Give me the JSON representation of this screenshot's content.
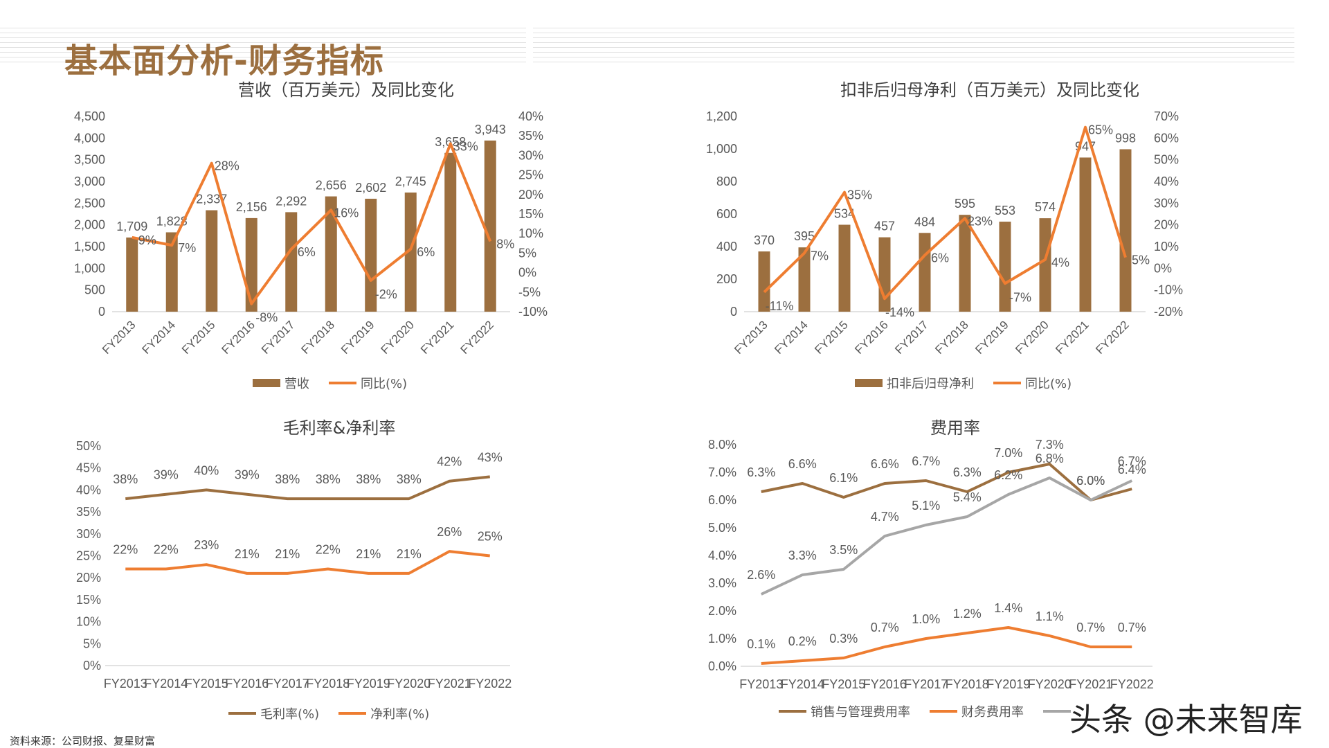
{
  "page_title": "基本面分析-财务指标",
  "source_note": "资料来源：公司财报、复星财富",
  "watermark": "头条 @未来智库",
  "colors": {
    "brown": "#9c6f3f",
    "orange": "#ee7d31",
    "gray": "#a6a6a6",
    "axis": "#d9d9d9",
    "text": "#595959"
  },
  "chart_data": [
    {
      "type": "bar",
      "title": "营收（百万美元）及同比变化",
      "categories": [
        "FY2013",
        "FY2014",
        "FY2015",
        "FY2016",
        "FY2017",
        "FY2018",
        "FY2019",
        "FY2020",
        "FY2021",
        "FY2022"
      ],
      "series": [
        {
          "name": "营收",
          "type": "bar",
          "axis": "left",
          "values": [
            1709,
            1828,
            2337,
            2156,
            2292,
            2656,
            2602,
            2745,
            3658,
            3943
          ],
          "labels": [
            "1,709",
            "1,828",
            "2,337",
            "2,156",
            "2,292",
            "2,656",
            "2,602",
            "2,745",
            "3,658",
            "3,943"
          ]
        },
        {
          "name": "同比(%)",
          "type": "line",
          "axis": "right",
          "values": [
            9,
            7,
            28,
            -8,
            6,
            16,
            -2,
            6,
            33,
            8
          ],
          "labels": [
            "9%",
            "7%",
            "28%",
            "-8%",
            "6%",
            "16%",
            "-2%",
            "6%",
            "33%",
            "8%"
          ]
        }
      ],
      "ylim_left": [
        0,
        4500
      ],
      "yticks_left": [
        "0",
        "500",
        "1,000",
        "1,500",
        "2,000",
        "2,500",
        "3,000",
        "3,500",
        "4,000",
        "4,500"
      ],
      "ylim_right": [
        -10,
        40
      ],
      "yticks_right": [
        "-10%",
        "-5%",
        "0%",
        "5%",
        "10%",
        "15%",
        "20%",
        "25%",
        "30%",
        "35%",
        "40%"
      ],
      "legend": [
        "营收",
        "同比(%)"
      ]
    },
    {
      "type": "bar",
      "title": "扣非后归母净利（百万美元）及同比变化",
      "categories": [
        "FY2013",
        "FY2014",
        "FY2015",
        "FY2016",
        "FY2017",
        "FY2018",
        "FY2019",
        "FY2020",
        "FY2021",
        "FY2022"
      ],
      "series": [
        {
          "name": "扣非后归母净利",
          "type": "bar",
          "axis": "left",
          "values": [
            370,
            395,
            534,
            457,
            484,
            595,
            553,
            574,
            947,
            998
          ],
          "labels": [
            "370",
            "395",
            "534",
            "457",
            "484",
            "595",
            "553",
            "574",
            "947",
            "998"
          ]
        },
        {
          "name": "同比(%)",
          "type": "line",
          "axis": "right",
          "values": [
            -11,
            7,
            35,
            -14,
            6,
            23,
            -7,
            4,
            65,
            5
          ],
          "labels": [
            "-11%",
            "7%",
            "35%",
            "-14%",
            "6%",
            "23%",
            "-7%",
            "4%",
            "65%",
            "5%"
          ]
        }
      ],
      "ylim_left": [
        0,
        1200
      ],
      "yticks_left": [
        "0",
        "200",
        "400",
        "600",
        "800",
        "1,000",
        "1,200"
      ],
      "ylim_right": [
        -20,
        70
      ],
      "yticks_right": [
        "-20%",
        "-10%",
        "0%",
        "10%",
        "20%",
        "30%",
        "40%",
        "50%",
        "60%",
        "70%"
      ],
      "legend": [
        "扣非后归母净利",
        "同比(%)"
      ]
    },
    {
      "type": "line",
      "title": "毛利率&净利率",
      "categories": [
        "FY2013",
        "FY2014",
        "FY2015",
        "FY2016",
        "FY2017",
        "FY2018",
        "FY2019",
        "FY2020",
        "FY2021",
        "FY2022"
      ],
      "series": [
        {
          "name": "毛利率(%)",
          "values": [
            38,
            39,
            40,
            39,
            38,
            38,
            38,
            38,
            42,
            43
          ],
          "labels": [
            "38%",
            "39%",
            "40%",
            "39%",
            "38%",
            "38%",
            "38%",
            "38%",
            "42%",
            "43%"
          ]
        },
        {
          "name": "净利率(%)",
          "values": [
            22,
            22,
            23,
            21,
            21,
            22,
            21,
            21,
            26,
            25
          ],
          "labels": [
            "22%",
            "22%",
            "23%",
            "21%",
            "21%",
            "22%",
            "21%",
            "21%",
            "26%",
            "25%"
          ]
        }
      ],
      "ylim": [
        0,
        50
      ],
      "yticks": [
        "0%",
        "5%",
        "10%",
        "15%",
        "20%",
        "25%",
        "30%",
        "35%",
        "40%",
        "45%",
        "50%"
      ],
      "legend": [
        "毛利率(%)",
        "净利率(%)"
      ]
    },
    {
      "type": "line",
      "title": "费用率",
      "categories": [
        "FY2013",
        "FY2014",
        "FY2015",
        "FY2016",
        "FY2017",
        "FY2018",
        "FY2019",
        "FY2020",
        "FY2021",
        "FY2022"
      ],
      "series": [
        {
          "name": "销售与管理费用率",
          "values": [
            6.3,
            6.6,
            6.1,
            6.6,
            6.7,
            6.3,
            7.0,
            7.3,
            6.0,
            6.4
          ],
          "labels": [
            "6.3%",
            "6.6%",
            "6.1%",
            "6.6%",
            "6.7%",
            "6.3%",
            "7.0%",
            "7.3%",
            "6.0%",
            "6.4%"
          ]
        },
        {
          "name": "财务费用率",
          "values": [
            0.1,
            0.2,
            0.3,
            0.7,
            1.0,
            1.2,
            1.4,
            1.1,
            0.7,
            0.7
          ],
          "labels": [
            "0.1%",
            "0.2%",
            "0.3%",
            "0.7%",
            "1.0%",
            "1.2%",
            "1.4%",
            "1.1%",
            "0.7%",
            "0.7%"
          ]
        },
        {
          "name": "",
          "values": [
            2.6,
            3.3,
            3.5,
            4.7,
            5.1,
            5.4,
            6.2,
            6.8,
            6.0,
            6.7
          ],
          "labels": [
            "2.6%",
            "3.3%",
            "3.5%",
            "4.7%",
            "5.1%",
            "5.4%",
            "6.2%",
            "6.8%",
            "6.0%",
            "6.7%"
          ]
        }
      ],
      "ylim": [
        0,
        8
      ],
      "yticks": [
        "0.0%",
        "1.0%",
        "2.0%",
        "3.0%",
        "4.0%",
        "5.0%",
        "6.0%",
        "7.0%",
        "8.0%"
      ],
      "legend": [
        "销售与管理费用率",
        "财务费用率"
      ]
    }
  ]
}
